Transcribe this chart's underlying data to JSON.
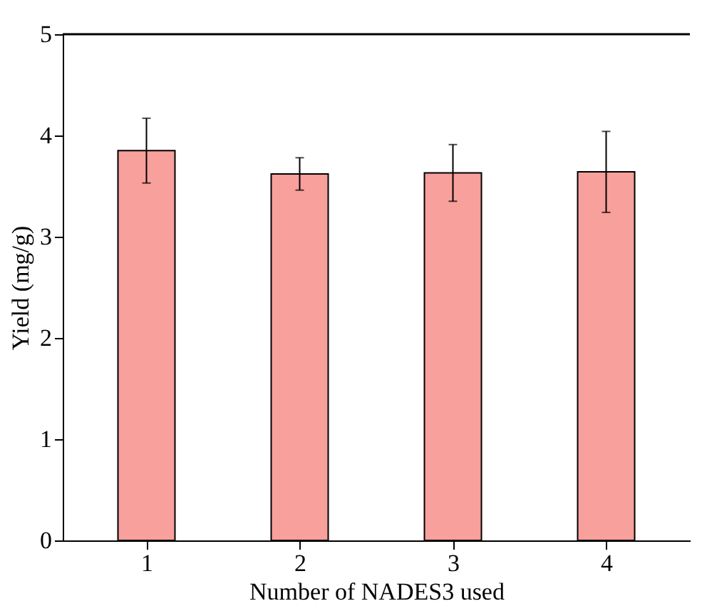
{
  "chart_data": {
    "type": "bar",
    "xlabel": "Number of NADES3 used",
    "ylabel": "Yield (mg/g)",
    "categories": [
      "1",
      "2",
      "3",
      "4"
    ],
    "values": [
      3.85,
      3.62,
      3.63,
      3.64
    ],
    "errors": [
      0.32,
      0.16,
      0.28,
      0.4
    ],
    "color": "#f7a09c",
    "ylim": [
      0,
      5
    ],
    "yticks": [
      0,
      1,
      2,
      3,
      4,
      5
    ],
    "grid": false
  }
}
